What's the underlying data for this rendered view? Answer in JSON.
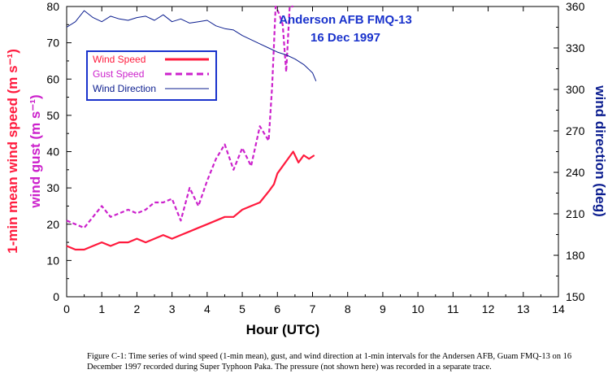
{
  "chart_data": {
    "type": "line",
    "title": "Anderson AFB FMQ-13",
    "subtitle": "16 Dec 1997",
    "xlabel": "Hour (UTC)",
    "ylabel_primary": "1-min mean wind speed (m s⁻¹)",
    "ylabel_secondary": "wind gust (m s⁻¹)",
    "ylabel_right": "wind direction (deg)",
    "xlim": [
      0,
      14
    ],
    "ylim_left": [
      0,
      80
    ],
    "ylim_right": [
      150,
      360
    ],
    "x_ticks": [
      "0",
      "1",
      "2",
      "3",
      "4",
      "5",
      "6",
      "7",
      "8",
      "9",
      "10",
      "11",
      "12",
      "13",
      "14"
    ],
    "y_left_ticks": [
      "0",
      "10",
      "20",
      "30",
      "40",
      "50",
      "60",
      "70",
      "80"
    ],
    "y_right_ticks": [
      "150",
      "180",
      "210",
      "240",
      "270",
      "300",
      "330",
      "360"
    ],
    "grid": false,
    "legend_position": "top-left",
    "colors": {
      "wind_speed": "#ff1a3d",
      "gust_speed": "#cc22cc",
      "wind_direction": "#0b1d8f",
      "legend_border": "#1a33cc"
    },
    "series": [
      {
        "name": "Wind Speed",
        "axis": "left",
        "style": "solid",
        "x": [
          0,
          0.25,
          0.5,
          0.75,
          1.0,
          1.25,
          1.5,
          1.75,
          2.0,
          2.25,
          2.5,
          2.75,
          3.0,
          3.25,
          3.5,
          3.75,
          4.0,
          4.25,
          4.5,
          4.75,
          5.0,
          5.25,
          5.5,
          5.75,
          5.9,
          6.0,
          6.15,
          6.3,
          6.45,
          6.6,
          6.75,
          6.9,
          7.05
        ],
        "y": [
          14,
          13,
          13,
          14,
          15,
          14,
          15,
          15,
          16,
          15,
          16,
          17,
          16,
          17,
          18,
          19,
          20,
          21,
          22,
          22,
          24,
          25,
          26,
          29,
          31,
          34,
          36,
          38,
          40,
          37,
          39,
          38,
          39
        ]
      },
      {
        "name": "Gust Speed",
        "axis": "left",
        "style": "dashed",
        "x": [
          0,
          0.25,
          0.5,
          0.75,
          1.0,
          1.25,
          1.5,
          1.75,
          2.0,
          2.25,
          2.5,
          2.75,
          3.0,
          3.25,
          3.5,
          3.75,
          4.0,
          4.25,
          4.5,
          4.75,
          5.0,
          5.25,
          5.5,
          5.75,
          5.85,
          5.95,
          6.05,
          6.15,
          6.25,
          6.35,
          6.45
        ],
        "y": [
          21,
          20,
          19,
          22,
          25,
          22,
          23,
          24,
          23,
          24,
          26,
          26,
          27,
          21,
          30,
          25,
          32,
          38,
          42,
          35,
          41,
          36,
          47,
          43,
          58,
          82,
          78,
          75,
          62,
          82,
          80
        ]
      },
      {
        "name": "Wind Direction",
        "axis": "right",
        "style": "solid",
        "x": [
          0,
          0.25,
          0.5,
          0.75,
          1.0,
          1.25,
          1.5,
          1.75,
          2.0,
          2.25,
          2.5,
          2.75,
          3.0,
          3.25,
          3.5,
          3.75,
          4.0,
          4.25,
          4.5,
          4.75,
          5.0,
          5.25,
          5.5,
          5.75,
          6.0,
          6.25,
          6.5,
          6.75,
          7.0,
          7.1
        ],
        "y": [
          345,
          349,
          357,
          352,
          349,
          353,
          351,
          350,
          352,
          353,
          350,
          354,
          349,
          351,
          348,
          349,
          350,
          346,
          344,
          343,
          339,
          336,
          333,
          330,
          327,
          325,
          322,
          318,
          312,
          306
        ]
      }
    ]
  },
  "caption": "Figure C-1: Time series of wind speed (1-min mean), gust, and wind direction at 1-min intervals for the Andersen AFB, Guam FMQ-13 on 16 December 1997 recorded during Super Typhoon Paka.  The pressure (not shown here) was recorded in a separate trace."
}
